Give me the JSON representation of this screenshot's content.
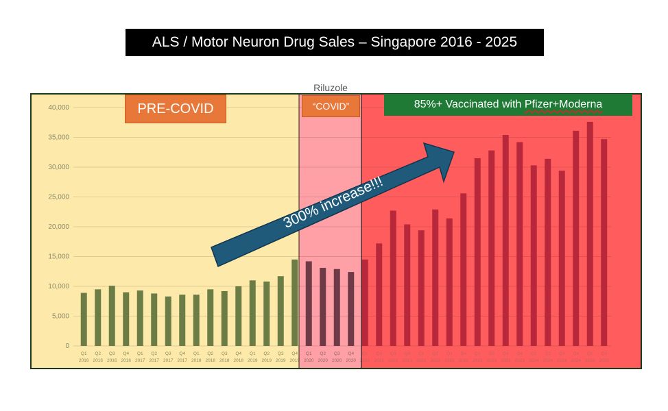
{
  "title": "ALS  / Motor Neuron Drug Sales – Singapore 2016 - 2025",
  "zones": {
    "precovid": "PRE-COVID",
    "covid": "“COVID”",
    "vaccinated_prefix": "85%+ Vaccinated with ",
    "vaccinated_brands": "Pfizer+Moderna"
  },
  "annotation": "300% increase!!!",
  "colors": {
    "precovid_bg": "#fde9a9",
    "covid_bg": "#ff9fa6",
    "vax_bg": "#ff5d5d",
    "bar_precovid": "#6b7d45",
    "bar_covid": "#6e3a47",
    "bar_vax": "#b8283a",
    "arrow": "#1f5a7a",
    "label_orange": "#e8773a",
    "label_green": "#1f7a35"
  },
  "chart_data": {
    "type": "bar",
    "series": [
      {
        "name": "Riluzole",
        "values": [
          8900,
          9500,
          10100,
          9000,
          9300,
          8800,
          8300,
          8600,
          8600,
          9500,
          9200,
          10000,
          11000,
          10800,
          11700,
          14500,
          14200,
          13100,
          12900,
          12400,
          14500,
          17200,
          22700,
          20400,
          19400,
          22900,
          21400,
          25600,
          31500,
          32800,
          35400,
          34200,
          30300,
          31400,
          29400,
          36100,
          37600,
          34700
        ]
      }
    ],
    "categories": [
      [
        "Q1",
        "2016"
      ],
      [
        "Q2",
        "2016"
      ],
      [
        "Q3",
        "2016"
      ],
      [
        "Q4",
        "2016"
      ],
      [
        "Q1",
        "2017"
      ],
      [
        "Q2",
        "2017"
      ],
      [
        "Q3",
        "2017"
      ],
      [
        "Q4",
        "2017"
      ],
      [
        "Q1",
        "2018"
      ],
      [
        "Q2",
        "2018"
      ],
      [
        "Q3",
        "2018"
      ],
      [
        "Q4",
        "2018"
      ],
      [
        "Q1",
        "2019"
      ],
      [
        "Q2",
        "2019"
      ],
      [
        "Q3",
        "2019"
      ],
      [
        "Q4",
        "2019"
      ],
      [
        "Q1",
        "2020"
      ],
      [
        "Q2",
        "2020"
      ],
      [
        "Q3",
        "2020"
      ],
      [
        "Q4",
        "2020"
      ],
      [
        "Q1",
        "2021"
      ],
      [
        "Q2",
        "2021"
      ],
      [
        "Q3",
        "2021"
      ],
      [
        "Q4",
        "2021"
      ],
      [
        "Q1",
        "2022"
      ],
      [
        "Q2",
        "2022"
      ],
      [
        "Q3",
        "2022"
      ],
      [
        "Q4",
        "2022"
      ],
      [
        "Q1",
        "2023"
      ],
      [
        "Q2",
        "2023"
      ],
      [
        "Q3",
        "2023"
      ],
      [
        "Q4",
        "2023"
      ],
      [
        "Q1",
        "2024"
      ],
      [
        "Q2",
        "2024"
      ],
      [
        "Q3",
        "2024"
      ],
      [
        "Q4",
        "2024"
      ],
      [
        "Q1",
        "2025"
      ],
      [
        "Q2",
        "2025"
      ]
    ],
    "y_ticks": [
      "0",
      "5,000",
      "10,000",
      "15,000",
      "20,000",
      "25,000",
      "30,000",
      "35,000",
      "40,000"
    ],
    "ylim": [
      0,
      40000
    ],
    "grid": true,
    "legend": "none",
    "zones": [
      {
        "label": "PRE-COVID",
        "from": 0,
        "to": 15
      },
      {
        "label": "“COVID”",
        "from": 16,
        "to": 19
      },
      {
        "label": "85%+ Vaccinated with Pfizer+Moderna",
        "from": 20,
        "to": 37
      }
    ]
  }
}
